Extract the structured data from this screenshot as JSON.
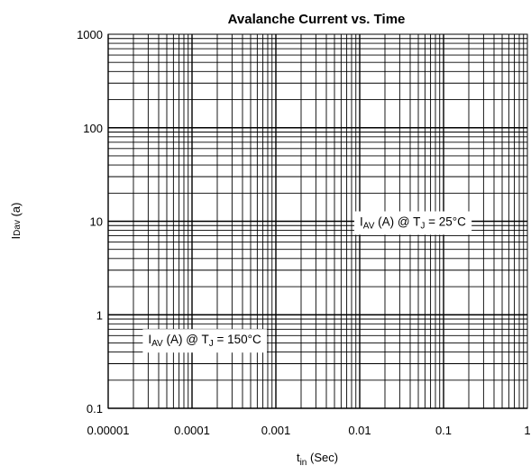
{
  "chart_data": {
    "type": "line",
    "title": "Avalanche Current vs. Time",
    "xlabel": {
      "main": "t",
      "sub": "in",
      "suffix": " (Sec)"
    },
    "ylabel": {
      "main": "I",
      "sub": "Dav",
      "suffix": " (a)"
    },
    "x_scale": "log",
    "y_scale": "log",
    "xlim": [
      1e-05,
      1
    ],
    "ylim": [
      0.1,
      1000
    ],
    "x_ticks": [
      1e-05,
      0.0001,
      0.001,
      0.01,
      0.1,
      1
    ],
    "x_tick_labels": [
      "0.00001",
      "0.0001",
      "0.001",
      "0.01",
      "0.1",
      "1"
    ],
    "y_ticks": [
      0.1,
      1,
      10,
      100,
      1000
    ],
    "y_tick_labels": [
      "0.1",
      "1",
      "10",
      "100",
      "1000"
    ],
    "grid": true,
    "annotations": [
      {
        "prefix": "I",
        "sub1": "AV",
        "middle": " (A) @ T",
        "sub2": "J",
        "suffix": " = 25°C",
        "x": 0.01,
        "y": 10
      },
      {
        "prefix": "I",
        "sub1": "AV",
        "middle": " (A) @ T",
        "sub2": "J",
        "suffix": " = 150°C",
        "x": 3e-05,
        "y": 0.55
      }
    ],
    "series": []
  }
}
